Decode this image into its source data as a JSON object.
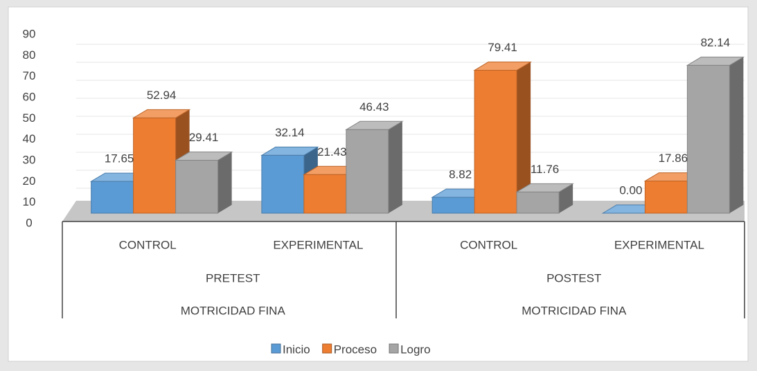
{
  "chart_data": {
    "type": "bar3d",
    "categories": [
      "CONTROL",
      "EXPERIMENTAL",
      "CONTROL",
      "EXPERIMENTAL"
    ],
    "groups": [
      "PRETEST",
      "POSTEST"
    ],
    "top_groups": [
      "MOTRICIDAD FINA",
      "MOTRICIDAD FINA"
    ],
    "series": [
      {
        "name": "Inicio",
        "color": "#5b9bd5",
        "values": [
          17.65,
          32.14,
          8.82,
          0
        ],
        "value_labels": [
          "17.65",
          "32.14",
          "8.82",
          "0.00"
        ]
      },
      {
        "name": "Proceso",
        "color": "#ed7d31",
        "values": [
          52.94,
          21.43,
          79.41,
          17.86
        ],
        "value_labels": [
          "52.94",
          "21.43",
          "79.41",
          "17.86"
        ]
      },
      {
        "name": "Logro",
        "color": "#a5a5a5",
        "values": [
          29.41,
          46.43,
          11.76,
          82.14
        ],
        "value_labels": [
          "29.41",
          "46.43",
          "11.76",
          "82.14"
        ]
      }
    ],
    "ylim": [
      0,
      90
    ],
    "yticks": [
      0,
      10,
      20,
      30,
      40,
      50,
      60,
      70,
      80,
      90
    ],
    "grid": true,
    "legend": "bottom"
  }
}
